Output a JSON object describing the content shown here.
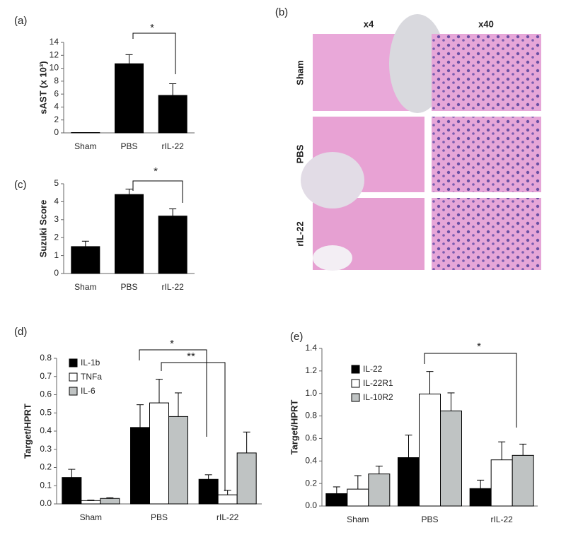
{
  "chart_data": [
    {
      "type": "bar",
      "panel": "(a)",
      "ylabel": "sAST (x 10³)",
      "categories": [
        "Sham",
        "PBS",
        "rIL-22"
      ],
      "values": [
        0.05,
        10.7,
        5.8
      ],
      "errors": [
        0,
        1.4,
        1.8
      ],
      "color": "#000000",
      "ylim": [
        0,
        14
      ],
      "yticks": [
        0,
        2,
        4,
        6,
        8,
        10,
        12,
        14
      ],
      "annotations": [
        "*"
      ]
    },
    {
      "type": "bar",
      "panel": "(c)",
      "ylabel": "Suzuki Score",
      "categories": [
        "Sham",
        "PBS",
        "rIL-22"
      ],
      "values": [
        1.5,
        4.4,
        3.2
      ],
      "errors": [
        0.3,
        0.3,
        0.4
      ],
      "color": "#000000",
      "ylim": [
        0,
        5
      ],
      "yticks": [
        0,
        1,
        2,
        3,
        4,
        5
      ],
      "annotations": [
        "*"
      ]
    },
    {
      "type": "grouped-bar",
      "panel": "(d)",
      "ylabel": "Target/HPRT",
      "categories": [
        "Sham",
        "PBS",
        "rIL-22"
      ],
      "series": [
        {
          "name": "IL-1b",
          "color": "#000000",
          "values": [
            0.145,
            0.42,
            0.135
          ],
          "errors": [
            0.045,
            0.125,
            0.025
          ]
        },
        {
          "name": "TNFa",
          "color": "#ffffff",
          "values": [
            0.018,
            0.555,
            0.05
          ],
          "errors": [
            0.003,
            0.13,
            0.025
          ]
        },
        {
          "name": "IL-6",
          "color": "#bfc3c3",
          "values": [
            0.03,
            0.48,
            0.28
          ],
          "errors": [
            0.004,
            0.13,
            0.115
          ]
        }
      ],
      "ylim": [
        0,
        0.8
      ],
      "yticks": [
        {
          "value": 0,
          "label": "0.0"
        },
        0.1,
        0.2,
        0.3,
        0.4,
        0.5,
        0.6,
        0.7,
        0.8
      ],
      "annotations": [
        "*",
        "**"
      ]
    },
    {
      "type": "grouped-bar",
      "panel": "(e)",
      "ylabel": "Target/HPRT",
      "categories": [
        "Sham",
        "PBS",
        "rIL-22"
      ],
      "series": [
        {
          "name": "IL-22",
          "color": "#000000",
          "values": [
            0.11,
            0.43,
            0.155
          ],
          "errors": [
            0.06,
            0.2,
            0.075
          ]
        },
        {
          "name": "IL-22R1",
          "color": "#ffffff",
          "values": [
            0.15,
            0.995,
            0.41
          ],
          "errors": [
            0.12,
            0.2,
            0.16
          ]
        },
        {
          "name": "IL-10R2",
          "color": "#bfc3c3",
          "values": [
            0.285,
            0.845,
            0.45
          ],
          "errors": [
            0.07,
            0.16,
            0.1
          ]
        }
      ],
      "ylim": [
        0,
        1.4
      ],
      "yticks": [
        {
          "value": 0,
          "label": "0.0"
        },
        0.2,
        0.4,
        0.6,
        0.8,
        {
          "value": 1,
          "label": "1.0"
        },
        1.2,
        1.4
      ],
      "annotations": [
        "*"
      ]
    }
  ],
  "histology": {
    "panel": "(b)",
    "columns": [
      "x4",
      "x40"
    ],
    "rows": [
      "Sham",
      "PBS",
      "rIL-22"
    ]
  }
}
